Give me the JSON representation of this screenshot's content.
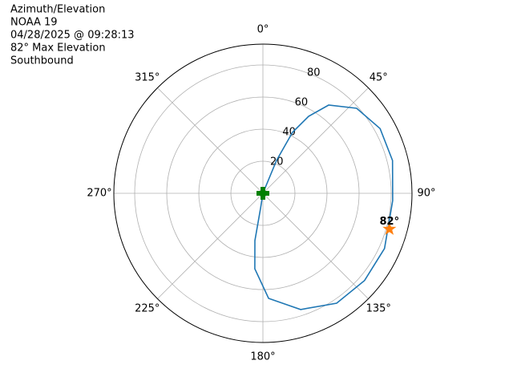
{
  "chart_data": {
    "type": "polar",
    "title": [
      "Azimuth/Elevation",
      "NOAA 19",
      "04/28/2025 @ 09:28:13",
      "82° Max Elevation",
      "Southbound"
    ],
    "rlim": [
      0,
      93
    ],
    "rticks": [
      20,
      40,
      60,
      80
    ],
    "thetaticks": [
      {
        "value": 0,
        "label": "0°"
      },
      {
        "value": 45,
        "label": "45°"
      },
      {
        "value": 90,
        "label": "90°"
      },
      {
        "value": 135,
        "label": "135°"
      },
      {
        "value": 180,
        "label": "180°"
      },
      {
        "value": 225,
        "label": "225°"
      },
      {
        "value": 270,
        "label": "270°"
      },
      {
        "value": 315,
        "label": "315°"
      }
    ],
    "grid": true,
    "series": [
      {
        "color": "#1f77b4",
        "x": [
          0,
          22.5,
          25.9,
          30.7,
          36.7,
          47.8,
          61.1,
          75.8,
          93.2,
          114.4,
          130.6,
          146.1,
          162,
          176.9,
          186.1,
          189.6,
          189,
          0
        ],
        "values": [
          0,
          22.2,
          42.3,
          55.8,
          68.6,
          78.9,
          83.5,
          83.4,
          81.1,
          83.3,
          83.5,
          82.5,
          76.2,
          65.6,
          47.3,
          29.9,
          9.6,
          0
        ]
      }
    ],
    "max_marker": {
      "azimuth": 105.8,
      "r": 82,
      "label": "82°",
      "color": "#ff7f0e"
    },
    "start_marker": {
      "azimuth": 0,
      "r": 0,
      "color": "#008000"
    }
  }
}
